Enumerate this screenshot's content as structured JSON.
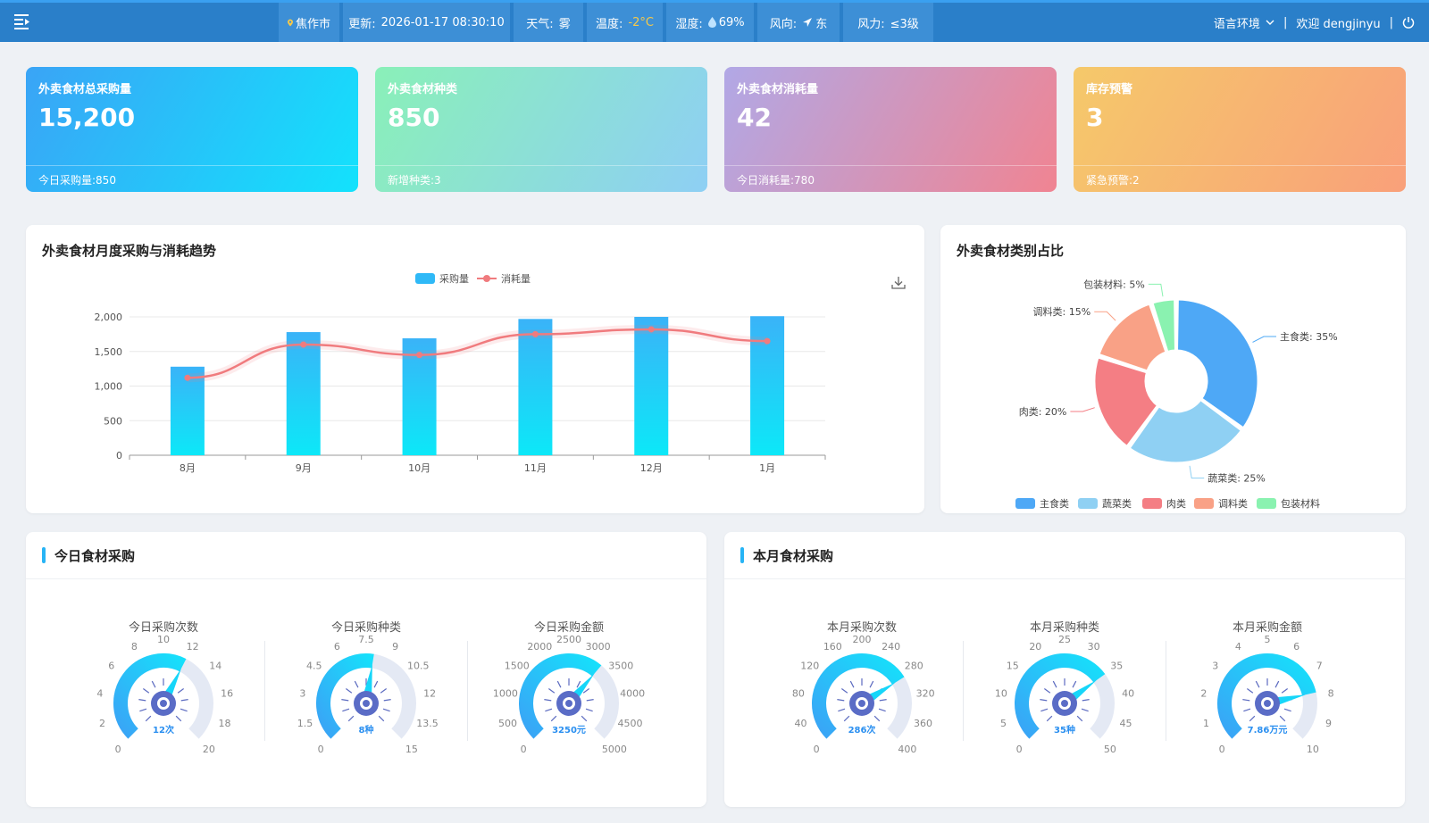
{
  "header": {
    "location": "焦作市",
    "update_label": "更新:",
    "update_time": "2026-01-17 08:30:10",
    "weather_label": "天气:",
    "weather_value": "雾",
    "temp_label": "温度:",
    "temp_value": "-2°C",
    "humidity_label": "湿度:",
    "humidity_value": "69%",
    "wind_dir_label": "风向:",
    "wind_dir_value": "东",
    "wind_power_label": "风力:",
    "wind_power_value": "≤3级",
    "lang_label": "语言环境",
    "separator": "|",
    "welcome": "欢迎 dengjinyu",
    "colors": {
      "bar": "#2a7fc9",
      "segment": "#3d8fd6",
      "temp": "#f7c948"
    }
  },
  "stats": [
    {
      "title": "外卖食材总采购量",
      "value": "15,200",
      "footer": "今日采购量:850"
    },
    {
      "title": "外卖食材种类",
      "value": "850",
      "footer": "新增种类:3"
    },
    {
      "title": "外卖食材消耗量",
      "value": "42",
      "footer": "今日消耗量:780"
    },
    {
      "title": "库存预警",
      "value": "3",
      "footer": "紧急预警:2"
    }
  ],
  "trend": {
    "title": "外卖食材月度采购与消耗趋势",
    "download_icon": "download-icon"
  },
  "category": {
    "title": "外卖食材类别占比"
  },
  "today": {
    "title": "今日食材采购",
    "gauges": [
      {
        "title": "今日采购次数",
        "label": "12次"
      },
      {
        "title": "今日采购种类",
        "label": "8种"
      },
      {
        "title": "今日采购金额",
        "label": "3250元"
      }
    ]
  },
  "month": {
    "title": "本月食材采购",
    "gauges": [
      {
        "title": "本月采购次数",
        "label": "286次"
      },
      {
        "title": "本月采购种类",
        "label": "35种"
      },
      {
        "title": "本月采购金额",
        "label": "7.86万元"
      }
    ]
  },
  "chart_data": [
    {
      "type": "bar",
      "title": "外卖食材月度采购与消耗趋势",
      "categories": [
        "8月",
        "9月",
        "10月",
        "11月",
        "12月",
        "1月"
      ],
      "series": [
        {
          "name": "采购量",
          "type": "bar",
          "values": [
            1280,
            1780,
            1690,
            1970,
            2000,
            2010
          ],
          "color": "#2fb9f7"
        },
        {
          "name": "消耗量",
          "type": "line",
          "values": [
            1120,
            1600,
            1450,
            1750,
            1820,
            1650
          ],
          "color": "#f07b7e"
        }
      ],
      "ylim": [
        0,
        2000
      ],
      "yticks": [
        "0",
        "500",
        "1,000",
        "1,500",
        "2,000"
      ],
      "legend": "top-center",
      "grid": true
    },
    {
      "type": "pie",
      "title": "外卖食材类别占比",
      "donut": true,
      "slices": [
        {
          "name": "主食类",
          "value": 35,
          "label": "主食类: 35%",
          "color": "#4ea8f6"
        },
        {
          "name": "蔬菜类",
          "value": 25,
          "label": "蔬菜类: 25%",
          "color": "#8fd0f3"
        },
        {
          "name": "肉类",
          "value": 20,
          "label": "肉类: 20%",
          "color": "#f47e84"
        },
        {
          "name": "调料类",
          "value": 15,
          "label": "调料类: 15%",
          "color": "#f9a186"
        },
        {
          "name": "包装材料",
          "value": 5,
          "label": "包装材料: 5%",
          "color": "#8af2b0"
        }
      ],
      "legend": "bottom-center"
    },
    {
      "type": "gauge",
      "title": "今日采购次数",
      "value": 12,
      "min": 0,
      "max": 20,
      "ticks": [
        "0",
        "2",
        "4",
        "6",
        "8",
        "10",
        "12",
        "14",
        "16",
        "18",
        "20"
      ],
      "value_label": "12次"
    },
    {
      "type": "gauge",
      "title": "今日采购种类",
      "value": 8,
      "min": 0,
      "max": 15,
      "ticks": [
        "0",
        "1.5",
        "3",
        "4.5",
        "6",
        "7.5",
        "9",
        "10.5",
        "12",
        "13.5",
        "15"
      ],
      "value_label": "8种"
    },
    {
      "type": "gauge",
      "title": "今日采购金额",
      "value": 3250,
      "min": 0,
      "max": 5000,
      "ticks": [
        "0",
        "500",
        "1000",
        "1500",
        "2000",
        "2500",
        "3000",
        "3500",
        "4000",
        "4500",
        "5000"
      ],
      "value_label": "3250元"
    },
    {
      "type": "gauge",
      "title": "本月采购次数",
      "value": 286,
      "min": 0,
      "max": 400,
      "ticks": [
        "0",
        "40",
        "80",
        "120",
        "160",
        "200",
        "240",
        "280",
        "320",
        "360",
        "400"
      ],
      "value_label": "286次"
    },
    {
      "type": "gauge",
      "title": "本月采购种类",
      "value": 35,
      "min": 0,
      "max": 50,
      "ticks": [
        "0",
        "5",
        "10",
        "15",
        "20",
        "25",
        "30",
        "35",
        "40",
        "45",
        "50"
      ],
      "value_label": "35种"
    },
    {
      "type": "gauge",
      "title": "本月采购金额",
      "value": 7.86,
      "min": 0,
      "max": 10,
      "ticks": [
        "0",
        "1",
        "2",
        "3",
        "4",
        "5",
        "6",
        "7",
        "8",
        "9",
        "10"
      ],
      "value_label": "7.86万元"
    }
  ]
}
